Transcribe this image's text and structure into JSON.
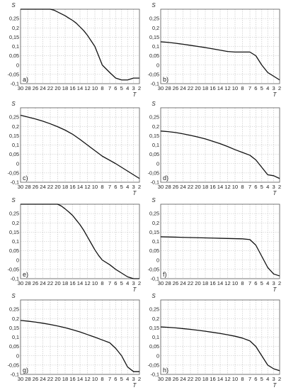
{
  "chart_data": [
    {
      "panel": "a)",
      "type": "line",
      "xlabel": "T",
      "ylabel": "S",
      "xlim": [
        30,
        2
      ],
      "ylim": [
        -0.1,
        0.3
      ],
      "xticks": [
        "30",
        "28",
        "26",
        "24",
        "22",
        "20",
        "18",
        "16",
        "14",
        "12",
        "10",
        "8",
        "7",
        "6",
        "5",
        "4",
        "3",
        "2"
      ],
      "yticks": [
        "0.25",
        "0.2",
        "0.15",
        "0.1",
        "0.05",
        "0",
        "-0.05",
        "-0.1"
      ],
      "grid": true,
      "series": [
        {
          "x": [
            30,
            28,
            26,
            24,
            23,
            22,
            21,
            20,
            19,
            18,
            17,
            16,
            15,
            14,
            13,
            12,
            11,
            10,
            9,
            8,
            7,
            6,
            5,
            4,
            3,
            2
          ],
          "y": [
            0.3,
            0.3,
            0.3,
            0.3,
            0.3,
            0.3,
            0.295,
            0.285,
            0.275,
            0.265,
            0.252,
            0.24,
            0.225,
            0.205,
            0.185,
            0.16,
            0.13,
            0.1,
            0.05,
            0.0,
            -0.04,
            -0.07,
            -0.08,
            -0.08,
            -0.07,
            -0.07
          ]
        }
      ]
    },
    {
      "panel": "b)",
      "type": "line",
      "xlabel": "T",
      "ylabel": "S",
      "xlim": [
        30,
        2
      ],
      "ylim": [
        -0.1,
        0.3
      ],
      "xticks": [
        "30",
        "28",
        "26",
        "24",
        "22",
        "20",
        "18",
        "16",
        "14",
        "12",
        "10",
        "8",
        "7",
        "6",
        "5",
        "4",
        "3",
        "2"
      ],
      "yticks": [
        "0.25",
        "0.2",
        "0.15",
        "0.1",
        "0.05",
        "0",
        "-0.05",
        "-0.1"
      ],
      "grid": true,
      "series": [
        {
          "x": [
            30,
            28,
            26,
            24,
            22,
            20,
            18,
            16,
            14,
            12,
            10,
            8,
            7,
            6,
            5,
            4,
            3,
            2
          ],
          "y": [
            0.125,
            0.122,
            0.117,
            0.112,
            0.106,
            0.1,
            0.094,
            0.087,
            0.08,
            0.073,
            0.07,
            0.07,
            0.07,
            0.05,
            0.0,
            -0.04,
            -0.06,
            -0.08
          ]
        }
      ]
    },
    {
      "panel": "c)",
      "type": "line",
      "xlabel": "T",
      "ylabel": "S",
      "xlim": [
        30,
        2
      ],
      "ylim": [
        -0.1,
        0.3
      ],
      "xticks": [
        "30",
        "28",
        "26",
        "24",
        "22",
        "20",
        "18",
        "16",
        "14",
        "12",
        "10",
        "8",
        "7",
        "6",
        "5",
        "4",
        "3",
        "2"
      ],
      "yticks": [
        "0.25",
        "0.2",
        "0.15",
        "0.1",
        "0.05",
        "0",
        "-0.05",
        "-0.1"
      ],
      "grid": true,
      "series": [
        {
          "x": [
            30,
            28,
            26,
            24,
            22,
            20,
            18,
            16,
            14,
            12,
            10,
            8,
            7,
            6,
            5,
            4,
            3,
            2
          ],
          "y": [
            0.26,
            0.25,
            0.24,
            0.228,
            0.214,
            0.198,
            0.18,
            0.158,
            0.13,
            0.1,
            0.07,
            0.04,
            0.018,
            0.0,
            -0.02,
            -0.04,
            -0.06,
            -0.08
          ]
        }
      ]
    },
    {
      "panel": "d)",
      "type": "line",
      "xlabel": "T",
      "ylabel": "S",
      "xlim": [
        30,
        2
      ],
      "ylim": [
        -0.1,
        0.3
      ],
      "xticks": [
        "30",
        "28",
        "26",
        "24",
        "22",
        "20",
        "18",
        "16",
        "14",
        "12",
        "10",
        "8",
        "7",
        "6",
        "5",
        "4",
        "3",
        "2"
      ],
      "yticks": [
        "0.25",
        "0.2",
        "0.15",
        "0.1",
        "0.05",
        "0",
        "-0.05",
        "-0.1"
      ],
      "grid": true,
      "series": [
        {
          "x": [
            30,
            28,
            26,
            24,
            22,
            20,
            18,
            16,
            14,
            12,
            10,
            8,
            7,
            6,
            5,
            4,
            3,
            2
          ],
          "y": [
            0.175,
            0.172,
            0.167,
            0.16,
            0.152,
            0.143,
            0.133,
            0.12,
            0.107,
            0.092,
            0.075,
            0.06,
            0.045,
            0.02,
            -0.02,
            -0.06,
            -0.065,
            -0.08
          ]
        }
      ]
    },
    {
      "panel": "e)",
      "type": "line",
      "xlabel": "T",
      "ylabel": "S",
      "xlim": [
        30,
        2
      ],
      "ylim": [
        -0.1,
        0.3
      ],
      "xticks": [
        "30",
        "28",
        "26",
        "24",
        "22",
        "20",
        "18",
        "16",
        "14",
        "12",
        "10",
        "8",
        "7",
        "6",
        "5",
        "4",
        "3",
        "2"
      ],
      "yticks": [
        "0.25",
        "0.2",
        "0.15",
        "0.1",
        "0.05",
        "0",
        "-0.05",
        "-0.1"
      ],
      "grid": true,
      "series": [
        {
          "x": [
            30,
            28,
            26,
            24,
            22,
            21,
            20,
            19,
            18,
            17,
            16,
            15,
            14,
            13,
            12,
            11,
            10,
            9,
            8,
            7,
            6,
            5,
            4,
            3,
            2
          ],
          "y": [
            0.3,
            0.3,
            0.3,
            0.3,
            0.3,
            0.3,
            0.3,
            0.29,
            0.275,
            0.258,
            0.24,
            0.215,
            0.19,
            0.16,
            0.125,
            0.09,
            0.055,
            0.025,
            0.0,
            -0.025,
            -0.05,
            -0.07,
            -0.09,
            -0.1,
            -0.1
          ]
        }
      ]
    },
    {
      "panel": "f)",
      "type": "line",
      "xlabel": "T",
      "ylabel": "S",
      "xlim": [
        30,
        2
      ],
      "ylim": [
        -0.1,
        0.3
      ],
      "xticks": [
        "30",
        "28",
        "26",
        "24",
        "22",
        "20",
        "18",
        "16",
        "14",
        "12",
        "10",
        "8",
        "7",
        "6",
        "5",
        "4",
        "3",
        "2"
      ],
      "yticks": [
        "0.25",
        "0.2",
        "0.15",
        "0.1",
        "0.05",
        "0",
        "-0.05",
        "-0.1"
      ],
      "grid": true,
      "series": [
        {
          "x": [
            30,
            28,
            26,
            24,
            22,
            20,
            18,
            16,
            14,
            12,
            10,
            8,
            7,
            6,
            5,
            4,
            3,
            2
          ],
          "y": [
            0.125,
            0.124,
            0.123,
            0.122,
            0.121,
            0.12,
            0.119,
            0.118,
            0.117,
            0.116,
            0.115,
            0.114,
            0.11,
            0.08,
            0.02,
            -0.04,
            -0.075,
            -0.085
          ]
        }
      ]
    },
    {
      "panel": "g)",
      "type": "line",
      "xlabel": "T",
      "ylabel": "S",
      "xlim": [
        30,
        2
      ],
      "ylim": [
        -0.1,
        0.3
      ],
      "xticks": [
        "30",
        "28",
        "26",
        "24",
        "22",
        "20",
        "18",
        "16",
        "14",
        "12",
        "10",
        "8",
        "7",
        "6",
        "5",
        "4",
        "3",
        "2"
      ],
      "yticks": [
        "0.25",
        "0.2",
        "0.15",
        "0.1",
        "0.05",
        "0",
        "-0.05",
        "-0.1"
      ],
      "grid": true,
      "series": [
        {
          "x": [
            30,
            28,
            26,
            24,
            22,
            20,
            18,
            16,
            14,
            12,
            10,
            8,
            7,
            6,
            5,
            4,
            3,
            2
          ],
          "y": [
            0.19,
            0.186,
            0.181,
            0.175,
            0.168,
            0.16,
            0.151,
            0.14,
            0.128,
            0.114,
            0.1,
            0.085,
            0.07,
            0.04,
            0.0,
            -0.06,
            -0.085,
            -0.085
          ]
        }
      ]
    },
    {
      "panel": "h)",
      "type": "line",
      "xlabel": "T",
      "ylabel": "S",
      "xlim": [
        30,
        2
      ],
      "ylim": [
        -0.1,
        0.3
      ],
      "xticks": [
        "30",
        "28",
        "26",
        "24",
        "22",
        "20",
        "18",
        "16",
        "14",
        "12",
        "10",
        "8",
        "7",
        "6",
        "5",
        "4",
        "3",
        "2"
      ],
      "yticks": [
        "0.25",
        "0.2",
        "0.15",
        "0.1",
        "0.05",
        "0",
        "-0.05",
        "-0.1"
      ],
      "grid": true,
      "series": [
        {
          "x": [
            30,
            28,
            26,
            24,
            22,
            20,
            18,
            16,
            14,
            12,
            10,
            8,
            7,
            6,
            5,
            4,
            3,
            2
          ],
          "y": [
            0.155,
            0.153,
            0.15,
            0.146,
            0.142,
            0.137,
            0.132,
            0.126,
            0.12,
            0.113,
            0.105,
            0.095,
            0.08,
            0.05,
            0.0,
            -0.05,
            -0.07,
            -0.08
          ]
        }
      ]
    }
  ]
}
